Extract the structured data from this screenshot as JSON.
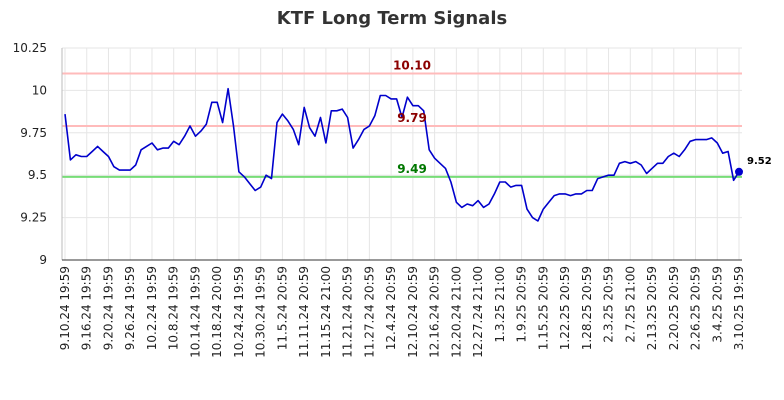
{
  "chart_data": {
    "type": "line",
    "title": "KTF Long Term Signals",
    "xlabel": "",
    "ylabel": "",
    "ylim": [
      9,
      10.25
    ],
    "y_ticks": [
      9,
      9.25,
      9.5,
      9.75,
      10,
      10.25
    ],
    "y_tick_labels": [
      "9",
      "9.25",
      "9.5",
      "9.75",
      "10",
      "10.25"
    ],
    "x_tick_labels": [
      "9.10.24 19:59",
      "9.16.24 19:59",
      "9.20.24 19:59",
      "9.26.24 19:59",
      "10.2.24 19:59",
      "10.8.24 19:59",
      "10.14.24 19:59",
      "10.18.24 20:00",
      "10.24.24 19:59",
      "10.30.24 19:59",
      "11.5.24 20:59",
      "11.11.24 20:59",
      "11.15.24 21:00",
      "11.21.24 20:59",
      "11.27.24 20:59",
      "12.4.24 20:59",
      "12.10.24 20:59",
      "12.16.24 20:59",
      "12.20.24 21:00",
      "12.27.24 21:00",
      "1.3.25 21:00",
      "1.9.25 20:59",
      "1.15.25 20:59",
      "1.22.25 20:59",
      "1.28.25 20:59",
      "2.3.25 20:59",
      "2.7.25 21:00",
      "2.13.25 20:59",
      "2.20.25 20:59",
      "2.26.25 20:59",
      "3.4.25 20:59",
      "3.10.25 19:59"
    ],
    "grid": true,
    "series": [
      {
        "name": "",
        "color": "#0000cc",
        "values": [
          9.86,
          9.59,
          9.62,
          9.61,
          9.61,
          9.64,
          9.67,
          9.64,
          9.61,
          9.55,
          9.53,
          9.53,
          9.53,
          9.56,
          9.65,
          9.67,
          9.69,
          9.65,
          9.66,
          9.66,
          9.7,
          9.68,
          9.73,
          9.79,
          9.73,
          9.76,
          9.8,
          9.93,
          9.93,
          9.81,
          10.01,
          9.79,
          9.52,
          9.49,
          9.45,
          9.41,
          9.43,
          9.5,
          9.48,
          9.81,
          9.86,
          9.82,
          9.77,
          9.68,
          9.9,
          9.78,
          9.73,
          9.84,
          9.69,
          9.88,
          9.88,
          9.89,
          9.84,
          9.66,
          9.71,
          9.77,
          9.79,
          9.85,
          9.97,
          9.97,
          9.95,
          9.95,
          9.84,
          9.96,
          9.91,
          9.91,
          9.88,
          9.65,
          9.6,
          9.57,
          9.54,
          9.46,
          9.34,
          9.31,
          9.33,
          9.32,
          9.35,
          9.31,
          9.33,
          9.39,
          9.46,
          9.46,
          9.43,
          9.44,
          9.44,
          9.3,
          9.25,
          9.23,
          9.3,
          9.34,
          9.38,
          9.39,
          9.39,
          9.38,
          9.39,
          9.39,
          9.41,
          9.41,
          9.48,
          9.49,
          9.5,
          9.5,
          9.57,
          9.58,
          9.57,
          9.58,
          9.56,
          9.51,
          9.54,
          9.57,
          9.57,
          9.61,
          9.63,
          9.61,
          9.65,
          9.7,
          9.71,
          9.71,
          9.71,
          9.72,
          9.69,
          9.63,
          9.64,
          9.47,
          9.52
        ]
      }
    ],
    "reference_lines": [
      {
        "value": 10.1,
        "label": "10.10",
        "line_color": "#ffbbbb",
        "label_color": "#8b0000"
      },
      {
        "value": 9.79,
        "label": "9.79",
        "line_color": "#ffbbbb",
        "label_color": "#8b0000"
      },
      {
        "value": 9.49,
        "label": "9.49",
        "line_color": "#77dd77",
        "label_color": "#007700"
      }
    ],
    "last_value_label": "9.52"
  }
}
